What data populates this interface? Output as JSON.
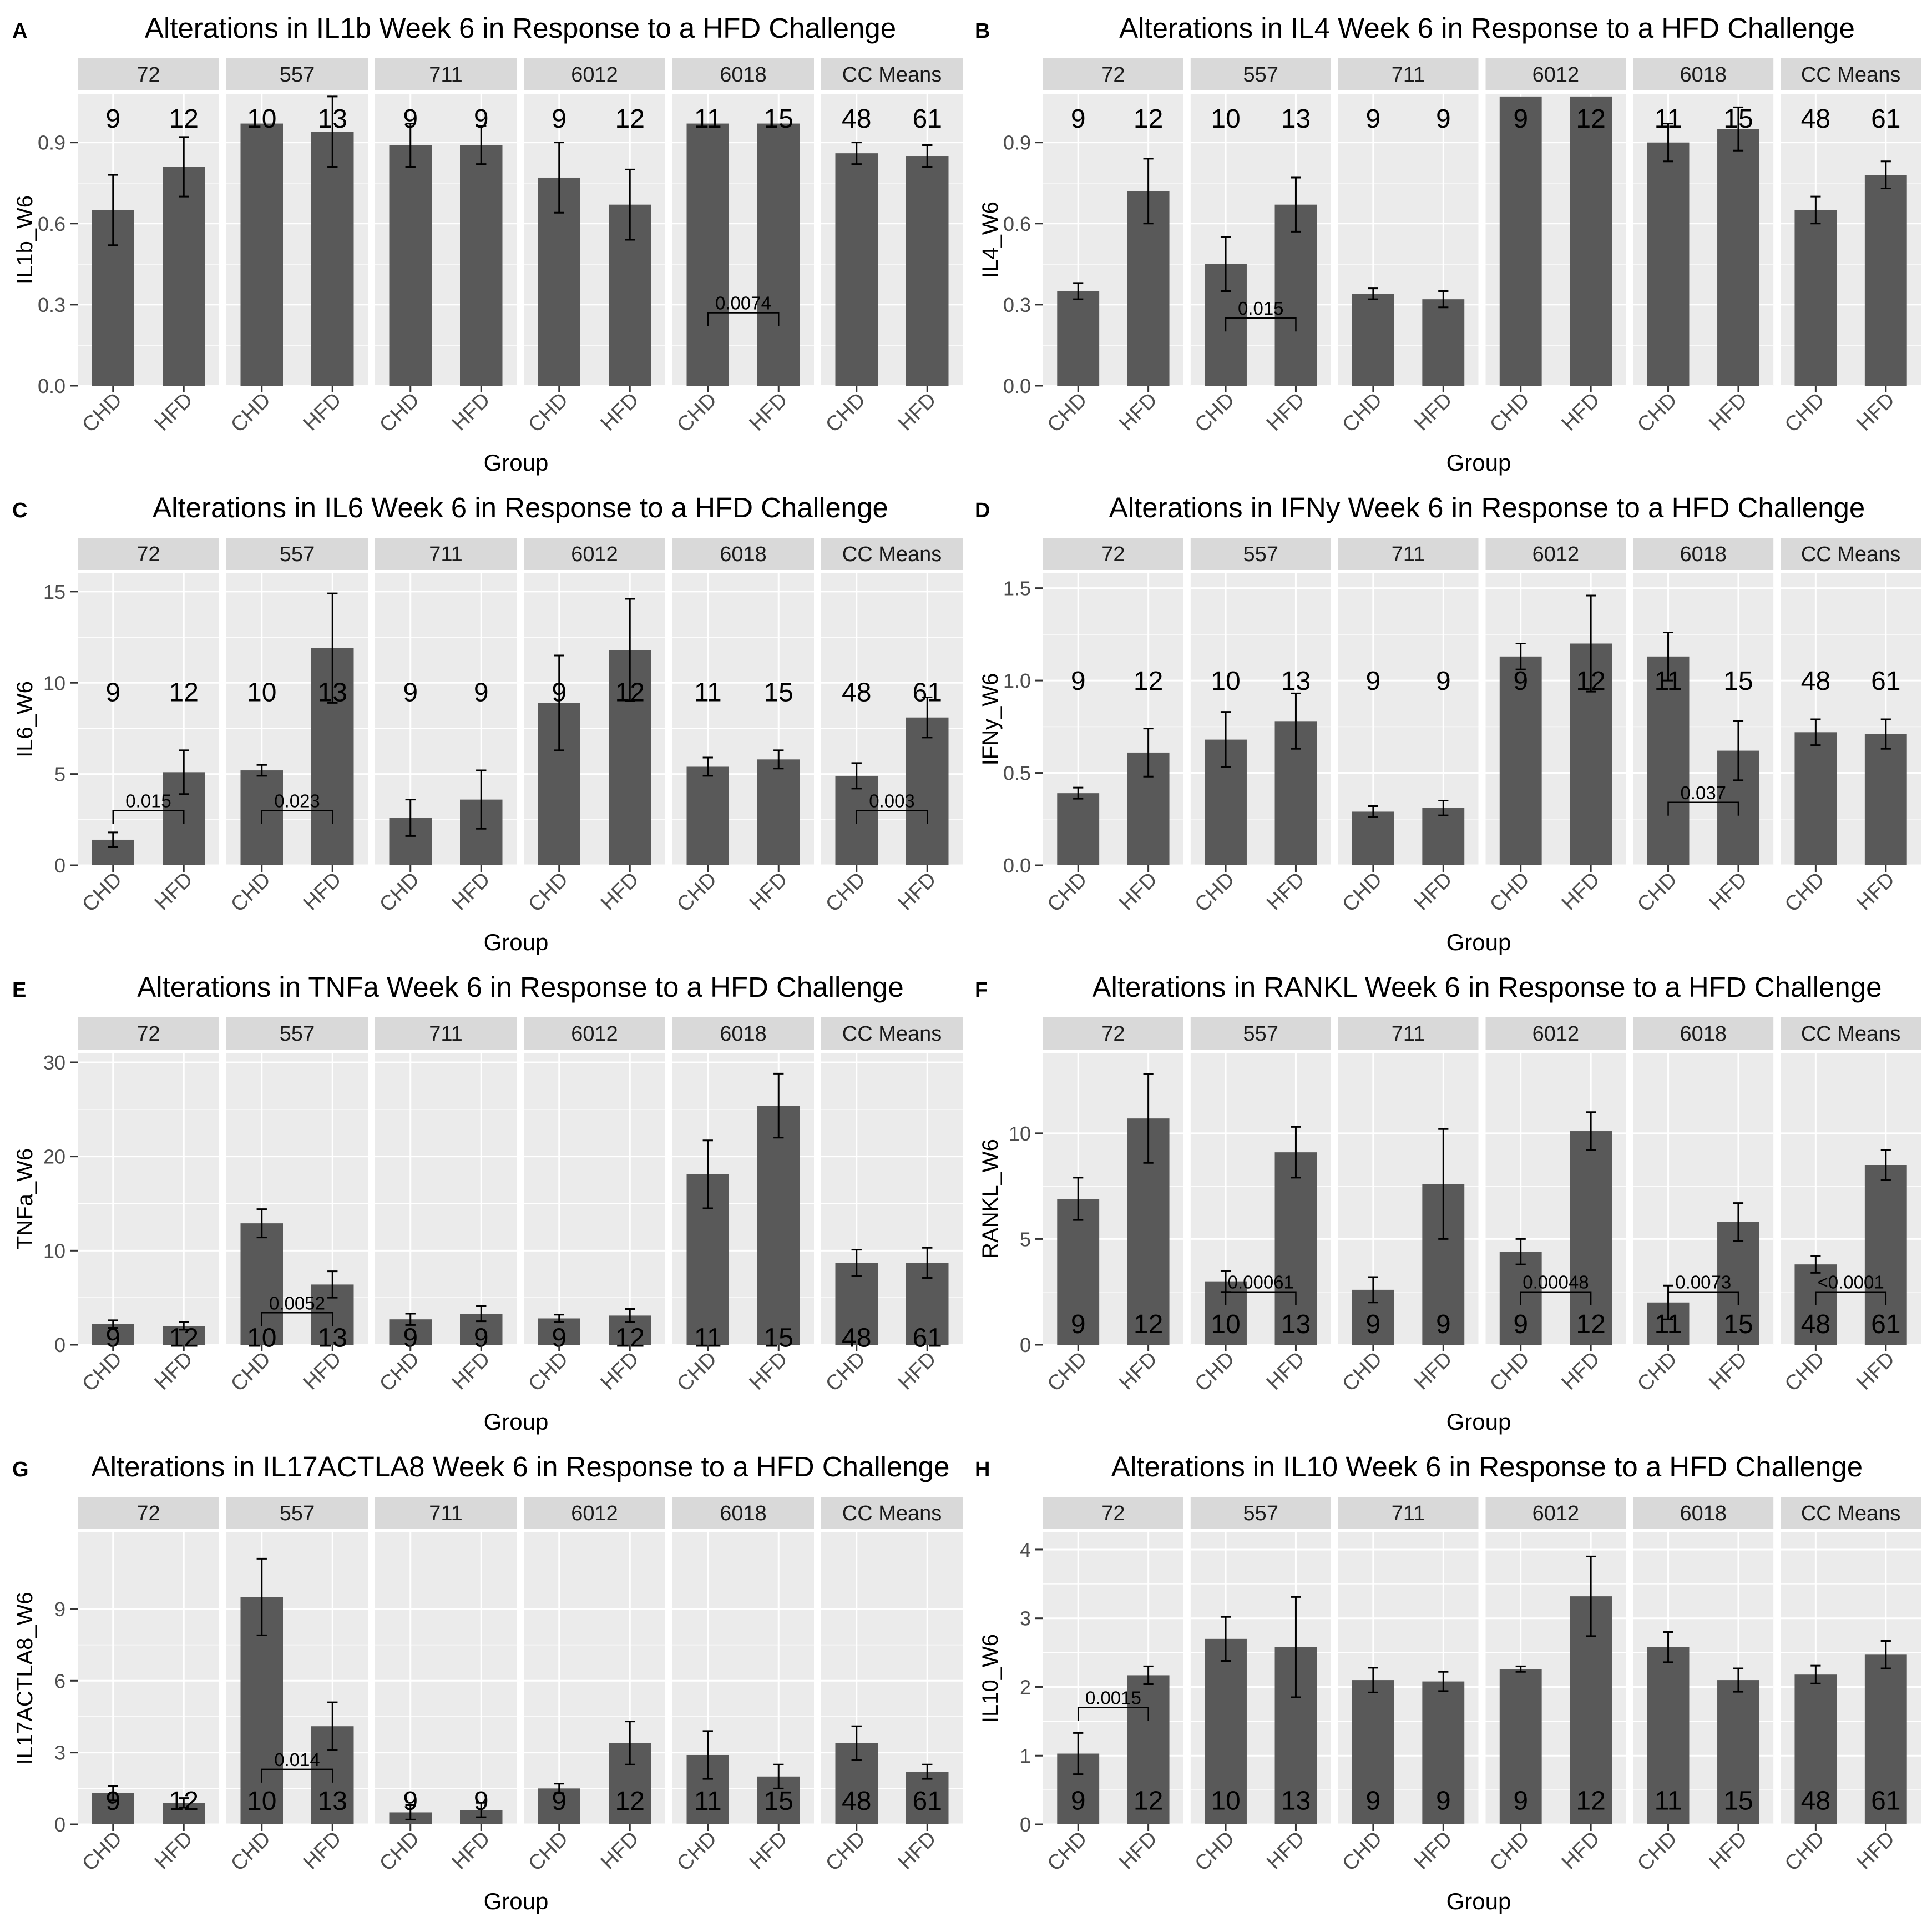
{
  "figure": {
    "x_axis_label": "Group",
    "strip_labels": [
      "72",
      "557",
      "711",
      "6012",
      "6018",
      "CC Means"
    ],
    "groups": [
      "CHD",
      "HFD"
    ],
    "colors": {
      "background": "#ffffff",
      "panel_bg": "#ebebeb",
      "strip_bg": "#d9d9d9",
      "grid_major": "#ffffff",
      "bar_fill": "#595959",
      "text": "#000000",
      "tick_text": "#4d4d4d",
      "axis_tick": "#333333"
    }
  },
  "chart_data": [
    {
      "letter": "A",
      "type": "bar",
      "title": "Alterations in IL1b Week 6 in Response to a HFD Challenge",
      "ylabel": "IL1b_W6",
      "xlabel": "Group",
      "ylim": [
        0,
        1.08
      ],
      "yticks": [
        0.0,
        0.3,
        0.6,
        0.9
      ],
      "ytick_labels": [
        "0.0",
        "0.3",
        "0.6",
        "0.9"
      ],
      "count_label_value": 0.99,
      "facets": [
        {
          "strip": "72",
          "values": [
            0.65,
            0.81
          ],
          "errors": [
            0.13,
            0.11
          ],
          "n": [
            "9",
            "12"
          ]
        },
        {
          "strip": "557",
          "values": [
            0.97,
            0.94
          ],
          "errors": [
            0.0,
            0.13
          ],
          "n": [
            "10",
            "13"
          ]
        },
        {
          "strip": "711",
          "values": [
            0.89,
            0.89
          ],
          "errors": [
            0.08,
            0.07
          ],
          "n": [
            "9",
            "9"
          ]
        },
        {
          "strip": "6012",
          "values": [
            0.77,
            0.67
          ],
          "errors": [
            0.13,
            0.13
          ],
          "n": [
            "9",
            "12"
          ]
        },
        {
          "strip": "6018",
          "values": [
            0.97,
            0.97
          ],
          "errors": [
            0.0,
            0.0
          ],
          "n": [
            "11",
            "15"
          ],
          "pvalue": "0.0074",
          "bracket_y": 0.27
        },
        {
          "strip": "CC Means",
          "values": [
            0.86,
            0.85
          ],
          "errors": [
            0.04,
            0.04
          ],
          "n": [
            "48",
            "61"
          ]
        }
      ]
    },
    {
      "letter": "B",
      "type": "bar",
      "title": "Alterations in IL4 Week 6 in Response to a HFD Challenge",
      "ylabel": "IL4_W6",
      "xlabel": "Group",
      "ylim": [
        0,
        1.08
      ],
      "yticks": [
        0.0,
        0.3,
        0.6,
        0.9
      ],
      "ytick_labels": [
        "0.0",
        "0.3",
        "0.6",
        "0.9"
      ],
      "count_label_value": 0.99,
      "facets": [
        {
          "strip": "72",
          "values": [
            0.35,
            0.72
          ],
          "errors": [
            0.03,
            0.12
          ],
          "n": [
            "9",
            "12"
          ]
        },
        {
          "strip": "557",
          "values": [
            0.45,
            0.67
          ],
          "errors": [
            0.1,
            0.1
          ],
          "n": [
            "10",
            "13"
          ],
          "pvalue": "0.015",
          "bracket_y": 0.25
        },
        {
          "strip": "711",
          "values": [
            0.34,
            0.32
          ],
          "errors": [
            0.02,
            0.03
          ],
          "n": [
            "9",
            "9"
          ]
        },
        {
          "strip": "6012",
          "values": [
            1.07,
            1.07
          ],
          "errors": [
            0.0,
            0.0
          ],
          "n": [
            "9",
            "12"
          ]
        },
        {
          "strip": "6018",
          "values": [
            0.9,
            0.95
          ],
          "errors": [
            0.07,
            0.08
          ],
          "n": [
            "11",
            "15"
          ]
        },
        {
          "strip": "CC Means",
          "values": [
            0.65,
            0.78
          ],
          "errors": [
            0.05,
            0.05
          ],
          "n": [
            "48",
            "61"
          ]
        }
      ]
    },
    {
      "letter": "C",
      "type": "bar",
      "title": "Alterations in IL6 Week 6 in Response to a HFD Challenge",
      "ylabel": "IL6_W6",
      "xlabel": "Group",
      "ylim": [
        0,
        16
      ],
      "yticks": [
        0,
        5,
        10,
        15
      ],
      "ytick_labels": [
        "0",
        "5",
        "10",
        "15"
      ],
      "count_label_value": 9.5,
      "facets": [
        {
          "strip": "72",
          "values": [
            1.4,
            5.1
          ],
          "errors": [
            0.4,
            1.2
          ],
          "n": [
            "9",
            "12"
          ],
          "pvalue": "0.015",
          "bracket_y": 3.0
        },
        {
          "strip": "557",
          "values": [
            5.2,
            11.9
          ],
          "errors": [
            0.3,
            3.0
          ],
          "n": [
            "10",
            "13"
          ],
          "pvalue": "0.023",
          "bracket_y": 3.0
        },
        {
          "strip": "711",
          "values": [
            2.6,
            3.6
          ],
          "errors": [
            1.0,
            1.6
          ],
          "n": [
            "9",
            "9"
          ]
        },
        {
          "strip": "6012",
          "values": [
            8.9,
            11.8
          ],
          "errors": [
            2.6,
            2.8
          ],
          "n": [
            "9",
            "12"
          ]
        },
        {
          "strip": "6018",
          "values": [
            5.4,
            5.8
          ],
          "errors": [
            0.5,
            0.5
          ],
          "n": [
            "11",
            "15"
          ]
        },
        {
          "strip": "CC Means",
          "values": [
            4.9,
            8.1
          ],
          "errors": [
            0.7,
            1.1
          ],
          "n": [
            "48",
            "61"
          ],
          "pvalue": "0.003",
          "bracket_y": 3.0
        }
      ]
    },
    {
      "letter": "D",
      "type": "bar",
      "title": "Alterations in IFNy Week 6 in Response to a HFD Challenge",
      "ylabel": "IFNy_W6",
      "xlabel": "Group",
      "ylim": [
        0,
        1.58
      ],
      "yticks": [
        0.0,
        0.5,
        1.0,
        1.5
      ],
      "ytick_labels": [
        "0.0",
        "0.5",
        "1.0",
        "1.5"
      ],
      "count_label_value": 1.0,
      "facets": [
        {
          "strip": "72",
          "values": [
            0.39,
            0.61
          ],
          "errors": [
            0.03,
            0.13
          ],
          "n": [
            "9",
            "12"
          ]
        },
        {
          "strip": "557",
          "values": [
            0.68,
            0.78
          ],
          "errors": [
            0.15,
            0.15
          ],
          "n": [
            "10",
            "13"
          ]
        },
        {
          "strip": "711",
          "values": [
            0.29,
            0.31
          ],
          "errors": [
            0.03,
            0.04
          ],
          "n": [
            "9",
            "9"
          ]
        },
        {
          "strip": "6012",
          "values": [
            1.13,
            1.2
          ],
          "errors": [
            0.07,
            0.26
          ],
          "n": [
            "9",
            "12"
          ]
        },
        {
          "strip": "6018",
          "values": [
            1.13,
            0.62
          ],
          "errors": [
            0.13,
            0.16
          ],
          "n": [
            "11",
            "15"
          ],
          "pvalue": "0.037",
          "bracket_y": 0.34
        },
        {
          "strip": "CC Means",
          "values": [
            0.72,
            0.71
          ],
          "errors": [
            0.07,
            0.08
          ],
          "n": [
            "48",
            "61"
          ]
        }
      ]
    },
    {
      "letter": "E",
      "type": "bar",
      "title": "Alterations in TNFa Week 6 in Response to a HFD Challenge",
      "ylabel": "TNFa_W6",
      "xlabel": "Group",
      "ylim": [
        0,
        31
      ],
      "yticks": [
        0,
        10,
        20,
        30
      ],
      "ytick_labels": [
        "0",
        "10",
        "20",
        "30"
      ],
      "count_label_value": 0.8,
      "facets": [
        {
          "strip": "72",
          "values": [
            2.2,
            2.0
          ],
          "errors": [
            0.4,
            0.4
          ],
          "n": [
            "9",
            "12"
          ]
        },
        {
          "strip": "557",
          "values": [
            12.9,
            6.4
          ],
          "errors": [
            1.5,
            1.4
          ],
          "n": [
            "10",
            "13"
          ],
          "pvalue": "0.0052",
          "bracket_y": 3.4
        },
        {
          "strip": "711",
          "values": [
            2.7,
            3.3
          ],
          "errors": [
            0.6,
            0.8
          ],
          "n": [
            "9",
            "9"
          ]
        },
        {
          "strip": "6012",
          "values": [
            2.8,
            3.1
          ],
          "errors": [
            0.4,
            0.7
          ],
          "n": [
            "9",
            "12"
          ]
        },
        {
          "strip": "6018",
          "values": [
            18.1,
            25.4
          ],
          "errors": [
            3.6,
            3.4
          ],
          "n": [
            "11",
            "15"
          ]
        },
        {
          "strip": "CC Means",
          "values": [
            8.7,
            8.7
          ],
          "errors": [
            1.4,
            1.6
          ],
          "n": [
            "48",
            "61"
          ]
        }
      ]
    },
    {
      "letter": "F",
      "type": "bar",
      "title": "Alterations in RANKL Week 6 in Response to a HFD Challenge",
      "ylabel": "RANKL_W6",
      "xlabel": "Group",
      "ylim": [
        0,
        13.8
      ],
      "yticks": [
        0,
        5,
        10
      ],
      "ytick_labels": [
        "0",
        "5",
        "10"
      ],
      "count_label_value": 1.0,
      "facets": [
        {
          "strip": "72",
          "values": [
            6.9,
            10.7
          ],
          "errors": [
            1.0,
            2.1
          ],
          "n": [
            "9",
            "12"
          ]
        },
        {
          "strip": "557",
          "values": [
            3.0,
            9.1
          ],
          "errors": [
            0.5,
            1.2
          ],
          "n": [
            "10",
            "13"
          ],
          "pvalue": "0.00061",
          "bracket_y": 2.5
        },
        {
          "strip": "711",
          "values": [
            2.6,
            7.6
          ],
          "errors": [
            0.6,
            2.6
          ],
          "n": [
            "9",
            "9"
          ]
        },
        {
          "strip": "6012",
          "values": [
            4.4,
            10.1
          ],
          "errors": [
            0.6,
            0.9
          ],
          "n": [
            "9",
            "12"
          ],
          "pvalue": "0.00048",
          "bracket_y": 2.5
        },
        {
          "strip": "6018",
          "values": [
            2.0,
            5.8
          ],
          "errors": [
            0.8,
            0.9
          ],
          "n": [
            "11",
            "15"
          ],
          "pvalue": "0.0073",
          "bracket_y": 2.5
        },
        {
          "strip": "CC Means",
          "values": [
            3.8,
            8.5
          ],
          "errors": [
            0.4,
            0.7
          ],
          "n": [
            "48",
            "61"
          ],
          "pvalue": "<0.0001",
          "bracket_y": 2.5
        }
      ]
    },
    {
      "letter": "G",
      "type": "bar",
      "title": "Alterations in IL17ACTLA8 Week 6 in Response to a HFD Challenge",
      "ylabel": "IL17ACTLA8_W6",
      "xlabel": "Group",
      "ylim": [
        0,
        12.2
      ],
      "yticks": [
        0,
        3,
        6,
        9
      ],
      "ytick_labels": [
        "0",
        "3",
        "6",
        "9"
      ],
      "count_label_value": 1.0,
      "facets": [
        {
          "strip": "72",
          "values": [
            1.3,
            0.9
          ],
          "errors": [
            0.3,
            0.2
          ],
          "n": [
            "9",
            "12"
          ]
        },
        {
          "strip": "557",
          "values": [
            9.5,
            4.1
          ],
          "errors": [
            1.6,
            1.0
          ],
          "n": [
            "10",
            "13"
          ],
          "pvalue": "0.014",
          "bracket_y": 2.3
        },
        {
          "strip": "711",
          "values": [
            0.5,
            0.6
          ],
          "errors": [
            0.3,
            0.3
          ],
          "n": [
            "9",
            "9"
          ]
        },
        {
          "strip": "6012",
          "values": [
            1.5,
            3.4
          ],
          "errors": [
            0.2,
            0.9
          ],
          "n": [
            "9",
            "12"
          ]
        },
        {
          "strip": "6018",
          "values": [
            2.9,
            2.0
          ],
          "errors": [
            1.0,
            0.5
          ],
          "n": [
            "11",
            "15"
          ]
        },
        {
          "strip": "CC Means",
          "values": [
            3.4,
            2.2
          ],
          "errors": [
            0.7,
            0.3
          ],
          "n": [
            "48",
            "61"
          ]
        }
      ]
    },
    {
      "letter": "H",
      "type": "bar",
      "title": "Alterations in IL10 Week 6 in Response to a HFD Challenge",
      "ylabel": "IL10_W6",
      "xlabel": "Group",
      "ylim": [
        0,
        4.25
      ],
      "yticks": [
        0,
        1,
        2,
        3,
        4
      ],
      "ytick_labels": [
        "0",
        "1",
        "2",
        "3",
        "4"
      ],
      "count_label_value": 0.35,
      "facets": [
        {
          "strip": "72",
          "values": [
            1.03,
            2.17
          ],
          "errors": [
            0.3,
            0.13
          ],
          "n": [
            "9",
            "12"
          ],
          "pvalue": "0.0015",
          "bracket_y": 1.7
        },
        {
          "strip": "557",
          "values": [
            2.7,
            2.58
          ],
          "errors": [
            0.32,
            0.73
          ],
          "n": [
            "10",
            "13"
          ]
        },
        {
          "strip": "711",
          "values": [
            2.1,
            2.08
          ],
          "errors": [
            0.18,
            0.14
          ],
          "n": [
            "9",
            "9"
          ]
        },
        {
          "strip": "6012",
          "values": [
            2.26,
            3.32
          ],
          "errors": [
            0.04,
            0.58
          ],
          "n": [
            "9",
            "12"
          ]
        },
        {
          "strip": "6018",
          "values": [
            2.58,
            2.1
          ],
          "errors": [
            0.22,
            0.17
          ],
          "n": [
            "11",
            "15"
          ]
        },
        {
          "strip": "CC Means",
          "values": [
            2.18,
            2.47
          ],
          "errors": [
            0.13,
            0.2
          ],
          "n": [
            "48",
            "61"
          ]
        }
      ]
    }
  ]
}
